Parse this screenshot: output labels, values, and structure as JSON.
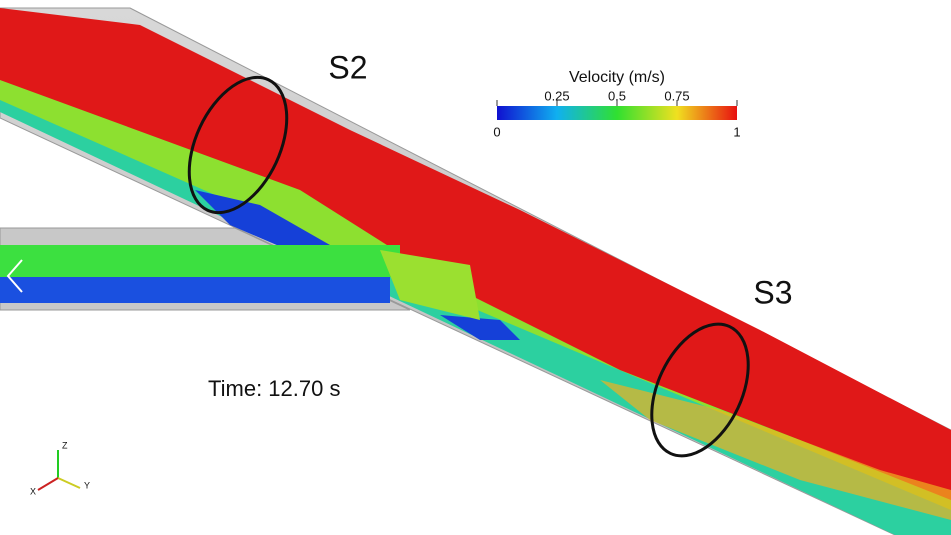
{
  "labels": {
    "section_2": "S2",
    "section_3": "S3"
  },
  "colorbar": {
    "title": "Velocity (m/s)",
    "range": [
      0,
      1
    ],
    "ticks": [
      0,
      0.25,
      0.5,
      0.75,
      1
    ]
  },
  "time_label": "Time: 12.70 s",
  "axes": {
    "z": "Z",
    "y": "Y",
    "x": "X"
  }
}
